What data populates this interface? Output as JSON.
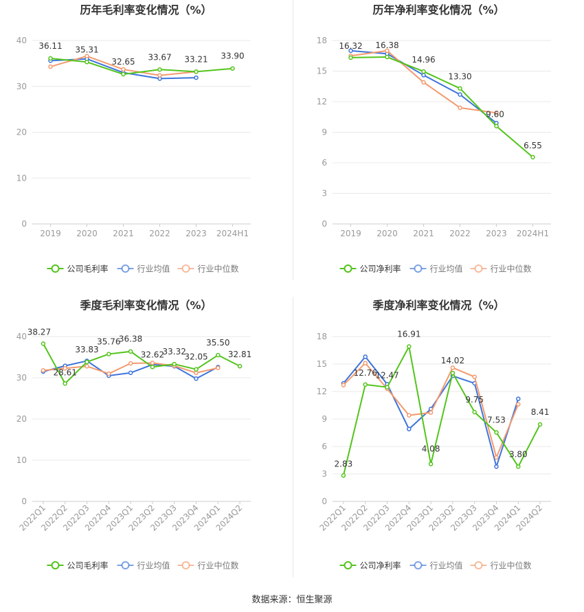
{
  "colors": {
    "company": "#52c41a",
    "avg": "#3d74db",
    "median": "#f39a6e",
    "grid": "#e8e8e8",
    "axis": "#999999"
  },
  "legend": {
    "avg": "行业均值",
    "median": "行业中位数"
  },
  "source": "数据来源：恒生聚源",
  "chart_data": [
    {
      "type": "line",
      "title": "历年毛利率变化情况（%）",
      "categories": [
        "2019",
        "2020",
        "2021",
        "2022",
        "2023",
        "2024H1"
      ],
      "ylim": [
        0,
        40
      ],
      "yticks": [
        0,
        10,
        20,
        30,
        40
      ],
      "rotate_x": false,
      "label_series": 0,
      "series": [
        {
          "name": "公司毛利率",
          "key": "company",
          "values": [
            36.11,
            35.31,
            32.65,
            33.67,
            33.21,
            33.9
          ]
        },
        {
          "name": "行业均值",
          "key": "avg",
          "values": [
            35.6,
            36.0,
            33.0,
            31.7,
            31.9,
            null
          ]
        },
        {
          "name": "行业中位数",
          "key": "median",
          "values": [
            34.3,
            36.6,
            33.7,
            32.4,
            33.2,
            null
          ]
        }
      ],
      "legend_position": "bottom",
      "grid": true
    },
    {
      "type": "line",
      "title": "历年净利率变化情况（%）",
      "categories": [
        "2019",
        "2020",
        "2021",
        "2022",
        "2023",
        "2024H1"
      ],
      "ylim": [
        0,
        18
      ],
      "yticks": [
        0,
        3,
        6,
        9,
        12,
        15,
        18
      ],
      "rotate_x": false,
      "label_series": 0,
      "series": [
        {
          "name": "公司净利率",
          "key": "company",
          "values": [
            16.32,
            16.38,
            14.96,
            13.3,
            9.6,
            6.55
          ]
        },
        {
          "name": "行业均值",
          "key": "avg",
          "values": [
            17.0,
            16.7,
            14.6,
            12.7,
            9.9,
            null
          ]
        },
        {
          "name": "行业中位数",
          "key": "median",
          "values": [
            16.5,
            17.0,
            13.9,
            11.4,
            10.9,
            null
          ]
        }
      ],
      "legend_position": "bottom",
      "grid": true
    },
    {
      "type": "line",
      "title": "季度毛利率变化情况（%）",
      "categories": [
        "2022Q1",
        "2022Q2",
        "2022Q3",
        "2022Q4",
        "2023Q1",
        "2023Q2",
        "2023Q3",
        "2023Q4",
        "2024Q1",
        "2024Q2"
      ],
      "ylim": [
        0,
        40
      ],
      "yticks": [
        0,
        10,
        20,
        30,
        40
      ],
      "rotate_x": true,
      "label_series": 0,
      "series": [
        {
          "name": "公司毛利率",
          "key": "company",
          "values": [
            38.27,
            28.61,
            33.83,
            35.76,
            36.38,
            32.62,
            33.32,
            32.05,
            35.5,
            32.81
          ]
        },
        {
          "name": "行业均值",
          "key": "avg",
          "values": [
            31.5,
            32.9,
            34.1,
            30.5,
            31.2,
            33.2,
            32.8,
            29.8,
            32.6,
            null
          ]
        },
        {
          "name": "行业中位数",
          "key": "median",
          "values": [
            31.8,
            32.3,
            32.8,
            31.0,
            33.5,
            33.6,
            32.9,
            31.2,
            32.4,
            null
          ]
        }
      ],
      "legend_position": "bottom",
      "grid": true
    },
    {
      "type": "line",
      "title": "季度净利率变化情况（%）",
      "categories": [
        "2022Q1",
        "2022Q2",
        "2022Q3",
        "2022Q4",
        "2023Q1",
        "2023Q2",
        "2023Q3",
        "2023Q4",
        "2024Q1",
        "2024Q2"
      ],
      "ylim": [
        0,
        18
      ],
      "yticks": [
        0,
        3,
        6,
        9,
        12,
        15,
        18
      ],
      "rotate_x": true,
      "label_series": 0,
      "series": [
        {
          "name": "公司净利率",
          "key": "company",
          "values": [
            2.83,
            12.76,
            12.47,
            16.91,
            4.08,
            14.02,
            9.75,
            7.53,
            3.8,
            8.41
          ]
        },
        {
          "name": "行业均值",
          "key": "avg",
          "values": [
            12.9,
            15.8,
            12.8,
            7.9,
            10.1,
            13.7,
            12.9,
            3.8,
            11.2,
            null
          ]
        },
        {
          "name": "行业中位数",
          "key": "median",
          "values": [
            12.7,
            15.1,
            12.3,
            9.4,
            9.7,
            14.6,
            13.6,
            4.8,
            10.6,
            null
          ]
        }
      ],
      "legend_position": "bottom",
      "grid": true
    }
  ]
}
